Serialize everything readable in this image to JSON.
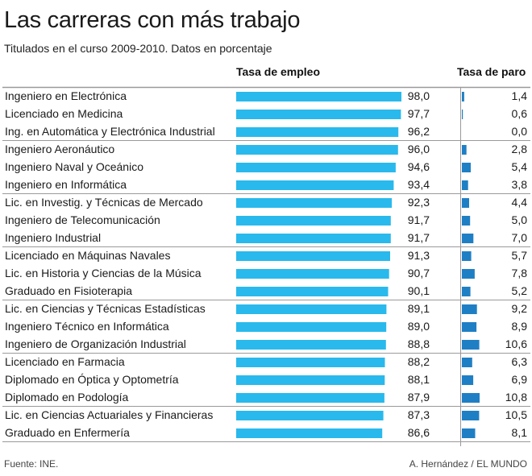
{
  "header": {
    "title": "Las carreras con más trabajo",
    "subtitle": "Titulados en el curso 2009-2010. Datos en porcentaje",
    "col_empleo": "Tasa de empleo",
    "col_paro": "Tasa de paro"
  },
  "footer": {
    "source": "Fuente: INE.",
    "credit": "A. Hernández / EL MUNDO"
  },
  "colors": {
    "empleo_bar": "#29b9ec",
    "paro_bar": "#1f7fc4",
    "rule": "#9a9a9a"
  },
  "chart_data": {
    "type": "bar",
    "orientation": "horizontal",
    "categories": [
      "Ingeniero en Electrónica",
      "Licenciado en Medicina",
      "Ing. en Automática y Electrónica Industrial",
      "Ingeniero Aeronáutico",
      "Ingeniero Naval y Oceánico",
      "Ingeniero en Informática",
      "Lic. en Investig. y Técnicas de Mercado",
      "Ingeniero de Telecomunicación",
      "Ingeniero Industrial",
      "Licenciado en Máquinas Navales",
      "Lic. en Historia y Ciencias de la Música",
      "Graduado en Fisioterapia",
      "Lic. en Ciencias y Técnicas Estadísticas",
      "Ingeniero Técnico en Informática",
      "Ingeniero de Organización Industrial",
      "Licenciado en Farmacia",
      "Diplomado en Óptica y Optometría",
      "Diplomado en Podología",
      "Lic. en Ciencias Actuariales y Financieras",
      "Graduado en Enfermería"
    ],
    "series": [
      {
        "name": "Tasa de empleo",
        "values": [
          98.0,
          97.7,
          96.2,
          96.0,
          94.6,
          93.4,
          92.3,
          91.7,
          91.7,
          91.3,
          90.7,
          90.1,
          89.1,
          89.0,
          88.8,
          88.2,
          88.1,
          87.9,
          87.3,
          86.6
        ],
        "labels": [
          "98,0",
          "97,7",
          "96,2",
          "96,0",
          "94,6",
          "93,4",
          "92,3",
          "91,7",
          "91,7",
          "91,3",
          "90,7",
          "90,1",
          "89,1",
          "89,0",
          "88,8",
          "88,2",
          "88,1",
          "87,9",
          "87,3",
          "86,6"
        ]
      },
      {
        "name": "Tasa de paro",
        "values": [
          1.4,
          0.6,
          0.0,
          2.8,
          5.4,
          3.8,
          4.4,
          5.0,
          7.0,
          5.7,
          7.8,
          5.2,
          9.2,
          8.9,
          10.6,
          6.3,
          6.9,
          10.8,
          10.5,
          8.1
        ],
        "labels": [
          "1,4",
          "0,6",
          "0,0",
          "2,8",
          "5,4",
          "3,8",
          "4,4",
          "5,0",
          "7,0",
          "5,7",
          "7,8",
          "5,2",
          "9,2",
          "8,9",
          "10,6",
          "6,3",
          "6,9",
          "10,8",
          "10,5",
          "8,1"
        ]
      }
    ],
    "group_size": 3,
    "grid": false
  }
}
